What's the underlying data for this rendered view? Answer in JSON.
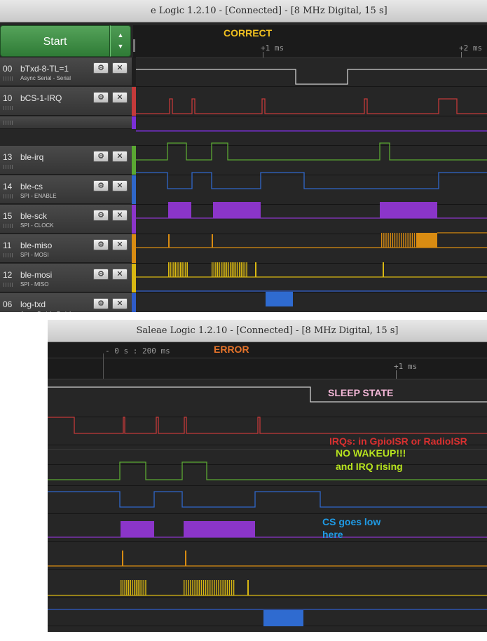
{
  "top": {
    "title": "e Logic 1.2.10 - [Connected] - [8 MHz Digital, 15 s]",
    "start_label": "Start",
    "arrow_up": "▲",
    "arrow_down": "▼",
    "annotation_correct": "CORRECT",
    "timing": [
      "+1 ms",
      "+2 ms"
    ],
    "channels": [
      {
        "num": "00",
        "name": "bTxd-8-TL=1",
        "sub": "Async Serial - Serial",
        "color": "#1e1e1e"
      },
      {
        "num": "10",
        "name": "bCS-1-IRQ",
        "sub": "",
        "color": "#c43a3a"
      },
      {
        "num": "",
        "name": "",
        "sub": "",
        "color": "#7a2fd6"
      },
      {
        "num": "13",
        "name": "ble-irq",
        "sub": "",
        "color": "#5aa832"
      },
      {
        "num": "14",
        "name": "ble-cs",
        "sub": "SPI - ENABLE",
        "color": "#2f67c9"
      },
      {
        "num": "15",
        "name": "ble-sck",
        "sub": "SPI - CLOCK",
        "color": "#8b35c9"
      },
      {
        "num": "11",
        "name": "ble-miso",
        "sub": "SPI - MOSI",
        "color": "#d98c12"
      },
      {
        "num": "12",
        "name": "ble-mosi",
        "sub": "SPI - MISO",
        "color": "#d9b812"
      },
      {
        "num": "06",
        "name": "log-txd",
        "sub": "Async Serial - Serial",
        "color": "#2f5cc9"
      }
    ],
    "gear_icon": "⚙",
    "close_icon": "✕"
  },
  "bottom": {
    "title": "Saleae Logic 1.2.10 - [Connected] - [8 MHz Digital, 15 s]",
    "annotation_error": "ERROR",
    "timing": [
      "- 0 s : 200 ms",
      "+1 ms"
    ],
    "annotations": {
      "sleep": "SLEEP STATE",
      "irqs": "IRQs:  in GpioISR or RadioISR",
      "wakeup_line1": "NO WAKEUP!!!",
      "wakeup_line2": "and IRQ rising",
      "cs_line1": "CS goes low",
      "cs_line2": "here"
    }
  },
  "colors": {
    "annotation_correct": "#f0c020",
    "annotation_error": "#e8742a",
    "sleep": "#f2b6d6",
    "irqs": "#d93030",
    "wakeup": "#b8e51e",
    "cs": "#1f9be6"
  }
}
